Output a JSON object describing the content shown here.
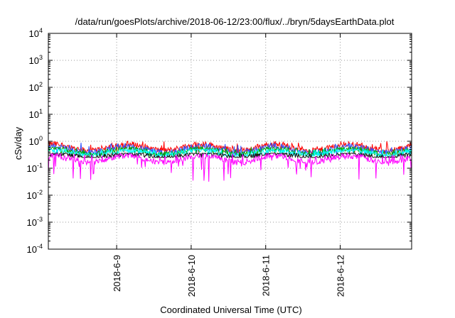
{
  "chart_data": {
    "type": "line",
    "title": "/data/run/goesPlots/archive/2018-06-12/23:00/flux/../bryn/5daysEarthData.plot",
    "xlabel": "Coordinated Universal Time (UTC)",
    "ylabel": "cSv/day",
    "x_range": [
      "2018-06-08T02:00",
      "2018-06-12T23:00"
    ],
    "x_ticks": [
      "2018-6-9",
      "2018-6-10",
      "2018-6-11",
      "2018-6-12"
    ],
    "x_tick_dates": [
      "2018-06-09",
      "2018-06-10",
      "2018-06-11",
      "2018-06-12"
    ],
    "y_scale": "log",
    "ylim": [
      0.0001,
      10000
    ],
    "y_ticks": [
      {
        "base": "10",
        "exp": "-4"
      },
      {
        "base": "10",
        "exp": "-3"
      },
      {
        "base": "10",
        "exp": "-2"
      },
      {
        "base": "10",
        "exp": "-1"
      },
      {
        "base": "10",
        "exp": "0"
      },
      {
        "base": "10",
        "exp": "1"
      },
      {
        "base": "10",
        "exp": "2"
      },
      {
        "base": "10",
        "exp": "3"
      },
      {
        "base": "10",
        "exp": "4"
      }
    ],
    "grid": true,
    "series": [
      {
        "color": "#ff0000",
        "typical": 0.6,
        "min": 0.35,
        "max": 1.0
      },
      {
        "color": "#3355ff",
        "typical": 0.5,
        "min": 0.3,
        "max": 0.9
      },
      {
        "color": "#00aa00",
        "typical": 0.42,
        "min": 0.3,
        "max": 0.6
      },
      {
        "color": "#00ffff",
        "typical": 0.38,
        "min": 0.28,
        "max": 0.5
      },
      {
        "color": "#111111",
        "typical": 0.3,
        "min": 0.25,
        "max": 0.36
      },
      {
        "color": "#ff00ff",
        "typical": 0.22,
        "min": 0.03,
        "max": 0.35
      }
    ]
  }
}
